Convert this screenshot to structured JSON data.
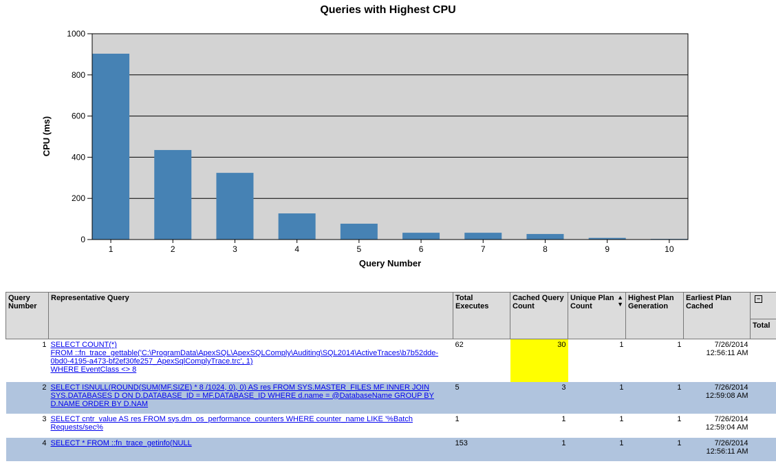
{
  "chart_data": {
    "type": "bar",
    "title": "Queries with Highest CPU",
    "xlabel": "Query Number",
    "ylabel": "CPU (ms)",
    "categories": [
      "1",
      "2",
      "3",
      "4",
      "5",
      "6",
      "7",
      "8",
      "9",
      "10"
    ],
    "values": [
      903,
      435,
      324,
      127,
      77,
      33,
      33,
      27,
      8,
      3
    ],
    "ylim": [
      0,
      1000
    ],
    "yticks": [
      "0",
      "200",
      "400",
      "600",
      "800",
      "1000"
    ],
    "grid": true,
    "colors": {
      "bar": "#4682b4",
      "plot_bg": "#d3d3d3"
    }
  },
  "table": {
    "headers": [
      "Query Number",
      "Representative Query",
      "Total Executes",
      "Cached Query Count",
      "Unique Plan Count",
      "Highest Plan Generation",
      "Earliest Plan Cached"
    ],
    "total_label": "Total",
    "rows": [
      {
        "num": "1",
        "query": [
          "SELECT COUNT(*)",
          "FROM ::fn_trace_gettable('C:\\ProgramData\\ApexSQL\\ApexSQLComply\\Auditing\\SQL2014\\ActiveTraces\\b7b52dde-0bd0-4195-a473-bf2ef30fe257_ApexSqlComplyTrace.trc', 1)",
          "WHERE EventClass <> 8"
        ],
        "executes": "62",
        "cached": "30",
        "unique": "1",
        "generation": "1",
        "date": "7/26/2014",
        "time": "12:56:11 AM",
        "highlight": true
      },
      {
        "num": "2",
        "query": [
          "SELECT ISNULL(ROUND(SUM(MF.SIZE) * 8 /1024, 0), 0) AS res FROM SYS.MASTER_FILES MF INNER JOIN SYS.DATABASES D ON D.DATABASE_ID = MF.DATABASE_ID WHERE d.name = @DatabaseName GROUP BY D.NAME ORDER BY D.NAM"
        ],
        "executes": "5",
        "cached": "3",
        "unique": "1",
        "generation": "1",
        "date": "7/26/2014",
        "time": "12:59:08 AM"
      },
      {
        "num": "3",
        "query": [
          "SELECT cntr_value AS res FROM sys.dm_os_performance_counters WHERE counter_name LIKE '%Batch Requests/sec%"
        ],
        "executes": "1",
        "cached": "1",
        "unique": "1",
        "generation": "1",
        "date": "7/26/2014",
        "time": "12:59:04 AM"
      },
      {
        "num": "4",
        "query": [
          "SELECT * FROM ::fn_trace_getinfo(NULL"
        ],
        "executes": "153",
        "cached": "1",
        "unique": "1",
        "generation": "1",
        "date": "7/26/2014",
        "time": "12:56:11 AM"
      }
    ]
  }
}
